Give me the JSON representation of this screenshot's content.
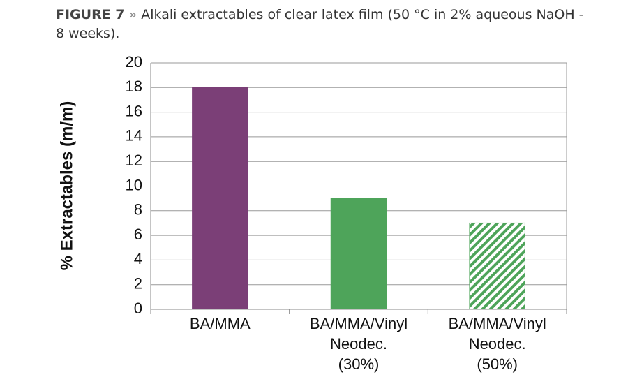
{
  "chart_data": {
    "type": "bar",
    "figure_label": "FIGURE 7",
    "separator": "»",
    "title": "Alkali extractables of clear latex film (50 °C in 2% aqueous NaOH - 8 weeks).",
    "y_label": "% Extractables (m/m)",
    "categories": [
      [
        "BA/MMA"
      ],
      [
        "BA/MMA/Vinyl",
        "Neodec.",
        "(30%)"
      ],
      [
        "BA/MMA/Vinyl",
        "Neodec.",
        "(50%)"
      ]
    ],
    "values": [
      18,
      9,
      7
    ],
    "colors": [
      "#7b3f77",
      "#4ea45a",
      "#4ea45a"
    ],
    "patterns": [
      "solid",
      "solid",
      "hatch"
    ],
    "ylim": [
      0,
      20
    ],
    "yticks": [
      0,
      2,
      4,
      6,
      8,
      10,
      12,
      14,
      16,
      18,
      20
    ],
    "grid": true
  }
}
